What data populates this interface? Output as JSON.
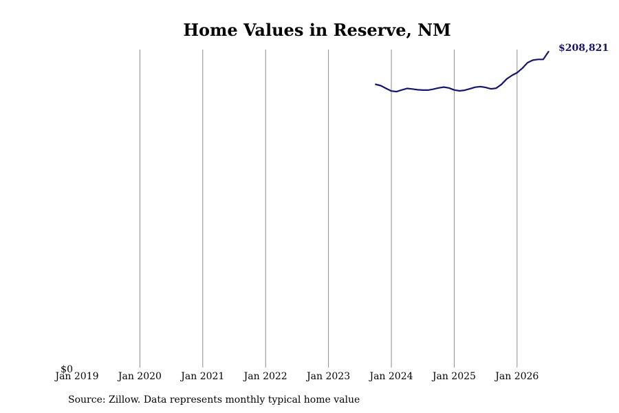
{
  "chart_data": {
    "type": "line",
    "title": "Home Values in Reserve, NM",
    "xlabel": "",
    "ylabel": "",
    "x_ticks": [
      "Jan 2019",
      "Jan 2020",
      "Jan 2021",
      "Jan 2022",
      "Jan 2023",
      "Jan 2024",
      "Jan 2025",
      "Jan 2026"
    ],
    "y_tick_label": "$0",
    "xlim": [
      "2019-01",
      "2026-07"
    ],
    "ylim": [
      0,
      208821
    ],
    "grid": "vertical lines at year ticks",
    "line_color": "#14146b",
    "end_label": "$208,821",
    "series": [
      {
        "x": [
          "2023-10",
          "2023-11",
          "2023-12",
          "2024-01",
          "2024-02",
          "2024-03",
          "2024-04",
          "2024-05",
          "2024-06",
          "2024-07",
          "2024-08",
          "2024-09",
          "2024-10",
          "2024-11",
          "2024-12",
          "2025-01",
          "2025-02",
          "2025-03",
          "2025-04",
          "2025-05",
          "2025-06",
          "2025-07",
          "2025-08",
          "2025-09",
          "2025-10",
          "2025-11",
          "2025-12",
          "2026-01",
          "2026-02",
          "2026-03",
          "2026-04",
          "2026-05",
          "2026-06",
          "2026-07"
        ],
        "values": [
          187200,
          186300,
          184500,
          182800,
          182400,
          183500,
          184500,
          184100,
          183600,
          183400,
          183400,
          184000,
          184800,
          185400,
          184800,
          183500,
          182900,
          183300,
          184300,
          185300,
          185700,
          185100,
          184200,
          184600,
          187100,
          190700,
          193100,
          194900,
          197800,
          201500,
          203200,
          203700,
          203700,
          208821
        ]
      }
    ]
  },
  "footer": {
    "source": "Source: Zillow. Data represents monthly typical home value"
  }
}
